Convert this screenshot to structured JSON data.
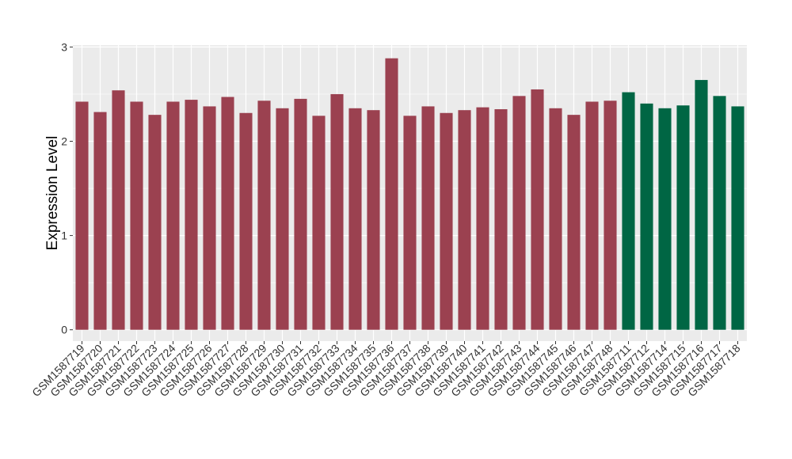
{
  "chart_data": {
    "type": "bar",
    "title": "",
    "xlabel": "",
    "ylabel": "Expression Level",
    "ylim": [
      -0.12,
      3.02
    ],
    "yticks": [
      0,
      1,
      2,
      3
    ],
    "grid": true,
    "categories": [
      "GSM1587719",
      "GSM1587720",
      "GSM1587721",
      "GSM1587722",
      "GSM1587723",
      "GSM1587724",
      "GSM1587725",
      "GSM1587726",
      "GSM1587727",
      "GSM1587728",
      "GSM1587729",
      "GSM1587730",
      "GSM1587731",
      "GSM1587732",
      "GSM1587733",
      "GSM1587734",
      "GSM1587735",
      "GSM1587736",
      "GSM1587737",
      "GSM1587738",
      "GSM1587739",
      "GSM1587740",
      "GSM1587741",
      "GSM1587742",
      "GSM1587743",
      "GSM1587744",
      "GSM1587745",
      "GSM1587746",
      "GSM1587747",
      "GSM1587748",
      "GSM1587711",
      "GSM1587712",
      "GSM1587714",
      "GSM1587715",
      "GSM1587716",
      "GSM1587717",
      "GSM1587718"
    ],
    "values": [
      2.42,
      2.31,
      2.54,
      2.42,
      2.28,
      2.42,
      2.44,
      2.37,
      2.47,
      2.3,
      2.43,
      2.35,
      2.45,
      2.27,
      2.5,
      2.35,
      2.33,
      2.88,
      2.27,
      2.37,
      2.3,
      2.33,
      2.36,
      2.34,
      2.48,
      2.55,
      2.35,
      2.28,
      2.42,
      2.43,
      2.52,
      2.4,
      2.35,
      2.38,
      2.65,
      2.48,
      2.37
    ],
    "groups": [
      0,
      0,
      0,
      0,
      0,
      0,
      0,
      0,
      0,
      0,
      0,
      0,
      0,
      0,
      0,
      0,
      0,
      0,
      0,
      0,
      0,
      0,
      0,
      0,
      0,
      0,
      0,
      0,
      0,
      0,
      1,
      1,
      1,
      1,
      1,
      1,
      1
    ],
    "colors": {
      "group_0": "#9B4150",
      "group_1": "#006644",
      "panel_background": "#EBEBEB",
      "grid": "#FFFFFF"
    }
  }
}
